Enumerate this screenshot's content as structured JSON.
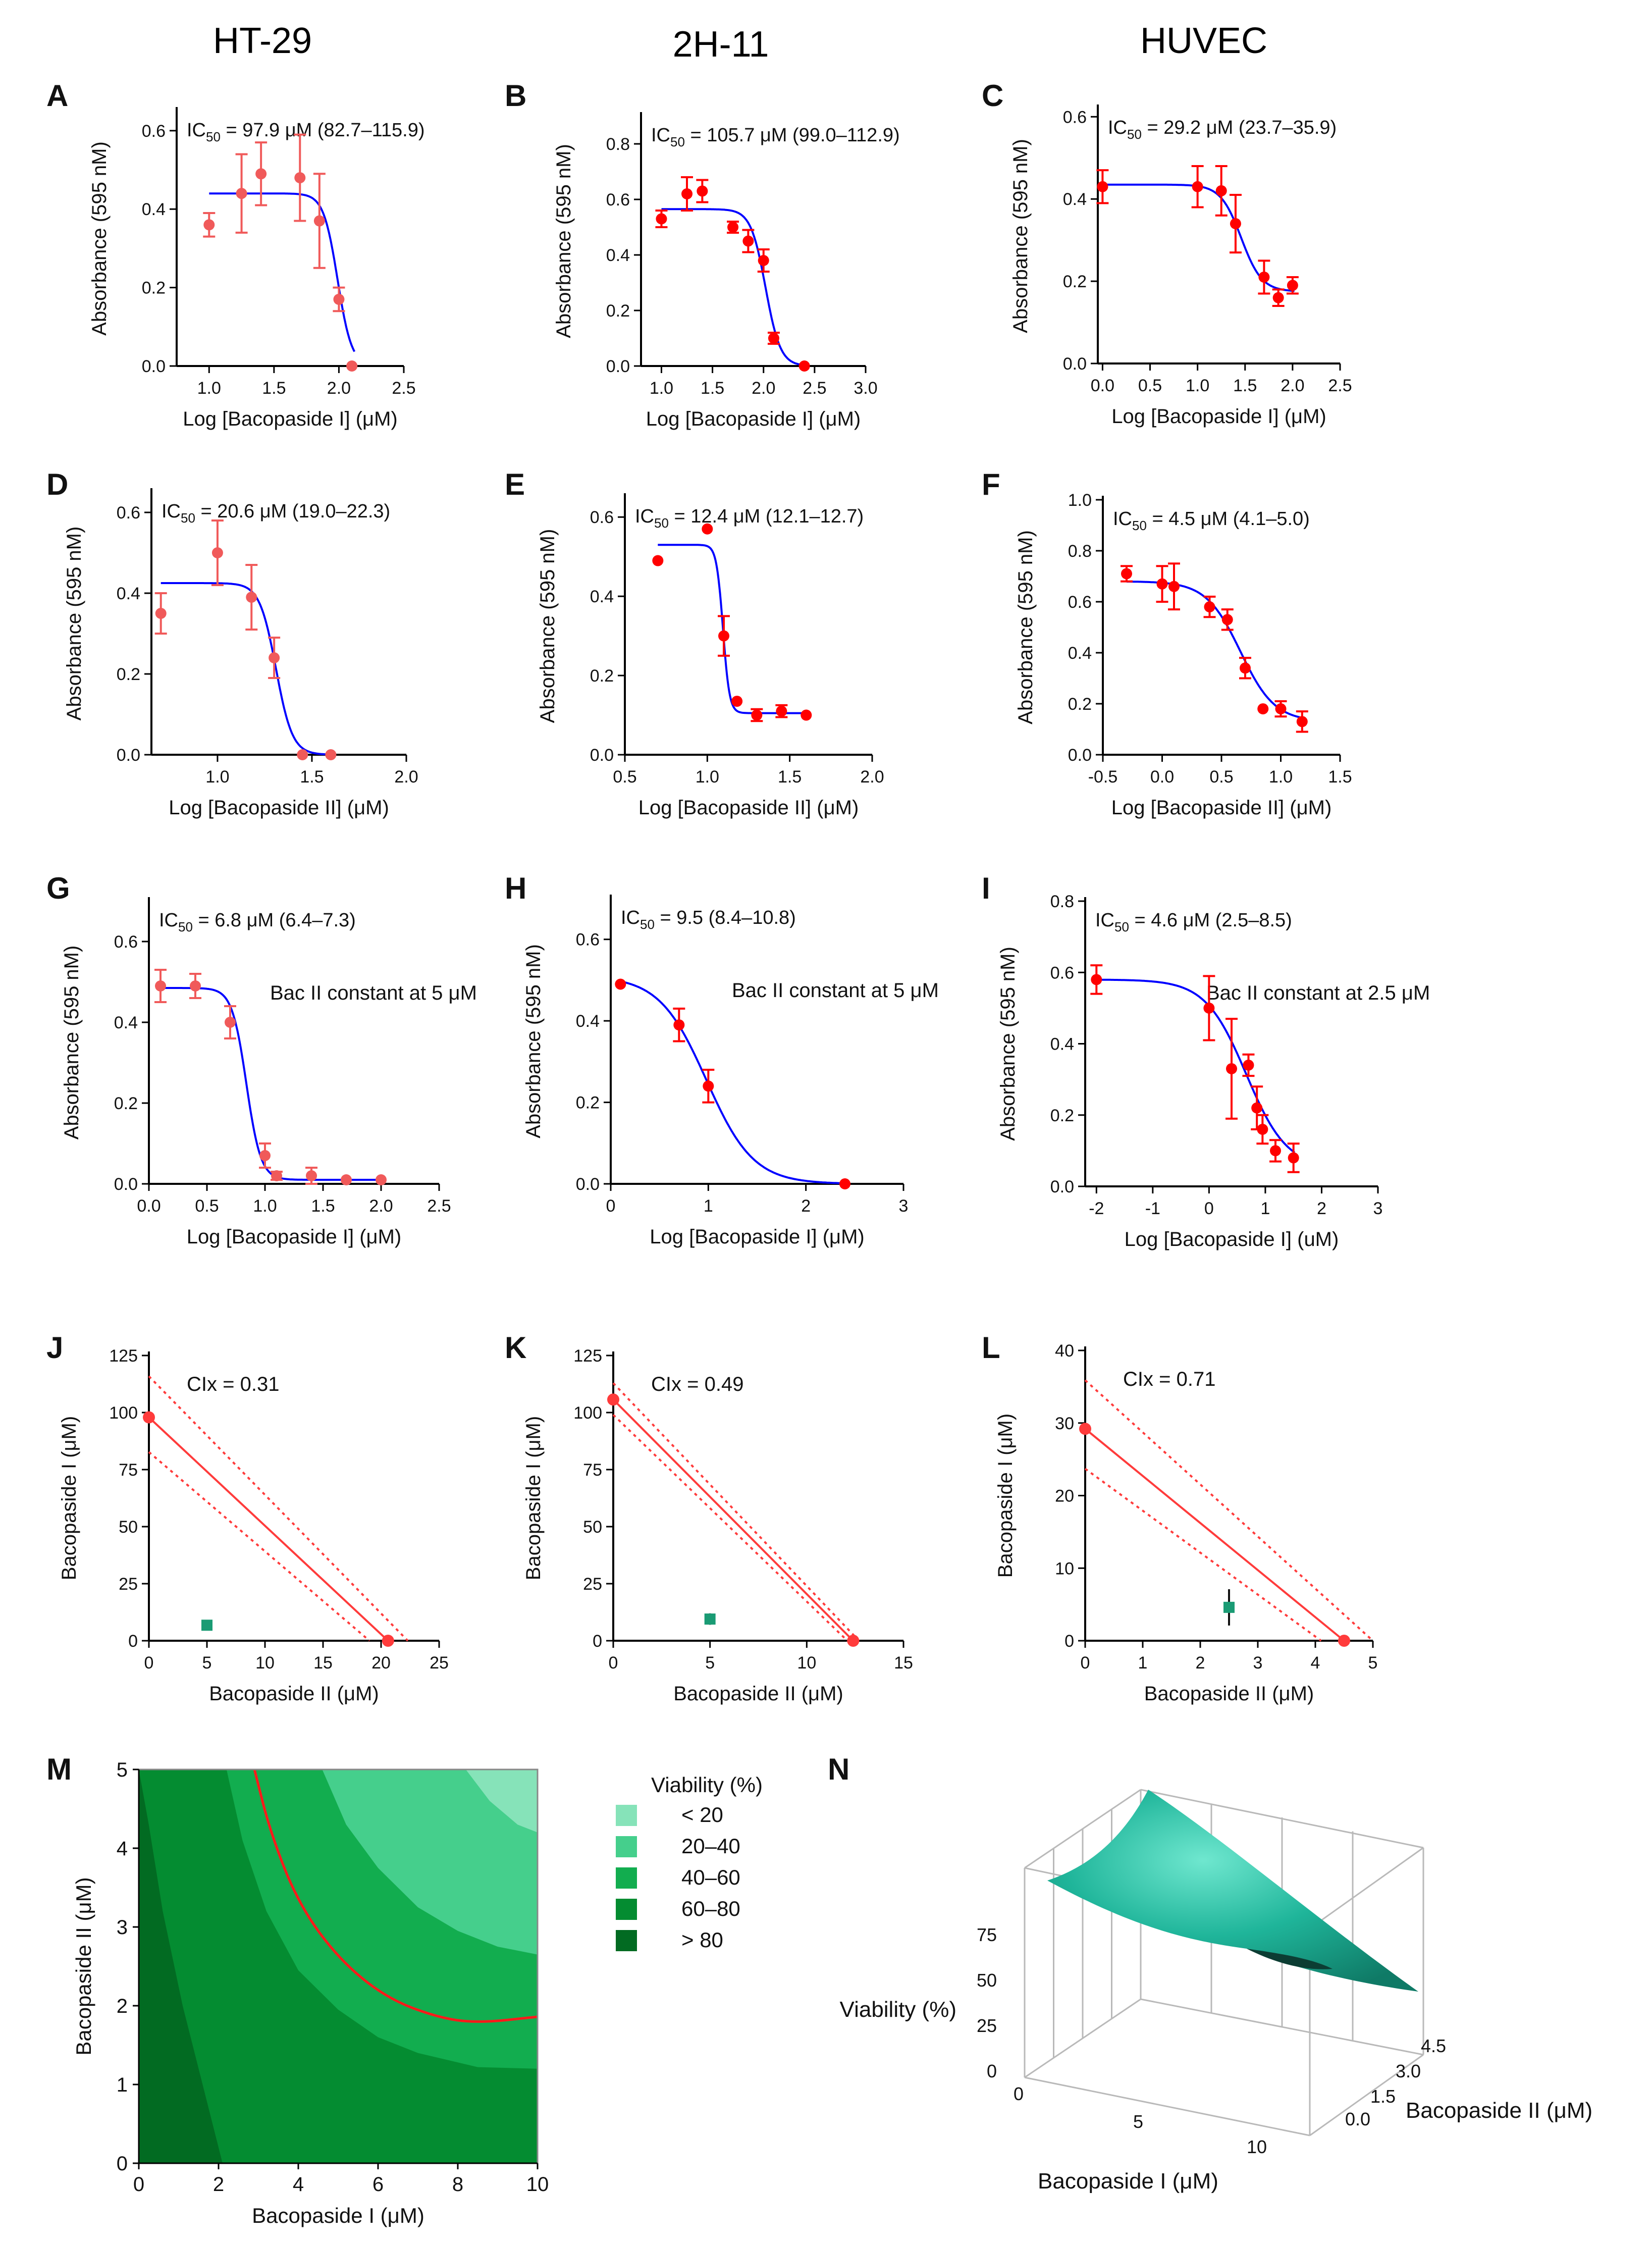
{
  "columns": [
    "HT-29",
    "2H-11",
    "HUVEC"
  ],
  "colors": {
    "points": "#ff0000",
    "points_light": "#f05a5a",
    "fit": "#0000ff",
    "iso": "#ff3b3b",
    "combo": "#1a9b74",
    "surface": "#1fb59a"
  },
  "chart_data": [
    {
      "panel": "A",
      "type": "scatter",
      "column": "HT-29",
      "ic50": "IC",
      "ic50_sub": "50",
      "ic50_rest": " = 97.9 μM (82.7–115.9)",
      "xlabel": "Log [Bacopaside I] (μM)",
      "ylabel": "Absorbance (595 nM)",
      "xlim": [
        0.75,
        2.5
      ],
      "ylim": [
        0,
        0.65
      ],
      "xticks": [
        1.0,
        1.5,
        2.0,
        2.5
      ],
      "xtick_labels": [
        "1.0",
        "1.5",
        "2.0",
        "2.5"
      ],
      "yticks": [
        0,
        0.2,
        0.4,
        0.6
      ],
      "ytick_labels": [
        "0.0",
        "0.2",
        "0.4",
        "0.6"
      ],
      "x": [
        1.0,
        1.25,
        1.4,
        1.7,
        1.85,
        2.0,
        2.1
      ],
      "y": [
        0.36,
        0.44,
        0.49,
        0.48,
        0.37,
        0.17,
        0.0
      ],
      "err": [
        0.03,
        0.1,
        0.08,
        0.11,
        0.12,
        0.03,
        0.0
      ],
      "fit": {
        "top": 0.44,
        "bottom": 0.0,
        "logic50": 1.99,
        "hill": 8
      }
    },
    {
      "panel": "B",
      "type": "scatter",
      "column": "2H-11",
      "ic50": "IC",
      "ic50_sub": "50",
      "ic50_rest": " = 105.7 μM (99.0–112.9)",
      "xlabel": "Log [Bacopaside I] (μM)",
      "ylabel": "Absorbance (595 nM)",
      "xlim": [
        0.8,
        3.0
      ],
      "ylim": [
        0,
        0.9
      ],
      "xticks": [
        1.0,
        1.5,
        2.0,
        2.5,
        3.0
      ],
      "xtick_labels": [
        "1.0",
        "1.5",
        "2.0",
        "2.5",
        "3.0"
      ],
      "yticks": [
        0,
        0.2,
        0.4,
        0.6,
        0.8
      ],
      "ytick_labels": [
        "0.0",
        "0.2",
        "0.4",
        "0.6",
        "0.8"
      ],
      "x": [
        1.0,
        1.25,
        1.4,
        1.7,
        1.85,
        2.0,
        2.1,
        2.4
      ],
      "y": [
        0.53,
        0.62,
        0.63,
        0.5,
        0.45,
        0.38,
        0.1,
        0.0
      ],
      "err": [
        0.03,
        0.06,
        0.04,
        0.02,
        0.04,
        0.04,
        0.02,
        0.0
      ],
      "fit": {
        "top": 0.565,
        "bottom": 0.0,
        "logic50": 2.02,
        "hill": 6
      }
    },
    {
      "panel": "C",
      "type": "scatter",
      "column": "HUVEC",
      "ic50": "IC",
      "ic50_sub": "50",
      "ic50_rest": " = 29.2 μM (23.7–35.9)",
      "xlabel": "Log [Bacopaside I] (μM)",
      "ylabel": "Absorbance (595 nM)",
      "xlim": [
        -0.05,
        2.5
      ],
      "ylim": [
        0,
        0.62
      ],
      "xticks": [
        0,
        0.5,
        1.0,
        1.5,
        2.0,
        2.5
      ],
      "xtick_labels": [
        "0.0",
        "0.5",
        "1.0",
        "1.5",
        "2.0",
        "2.5"
      ],
      "yticks": [
        0,
        0.2,
        0.4,
        0.6
      ],
      "ytick_labels": [
        "0.0",
        "0.2",
        "0.4",
        "0.6"
      ],
      "x": [
        0.0,
        1.0,
        1.25,
        1.4,
        1.7,
        1.85,
        2.0
      ],
      "y": [
        0.43,
        0.43,
        0.42,
        0.34,
        0.21,
        0.16,
        0.19
      ],
      "err": [
        0.04,
        0.05,
        0.06,
        0.07,
        0.04,
        0.02,
        0.02
      ],
      "fit": {
        "top": 0.435,
        "bottom": 0.175,
        "logic50": 1.46,
        "hill": 4
      }
    },
    {
      "panel": "D",
      "type": "scatter",
      "column": "HT-29",
      "ic50": "IC",
      "ic50_sub": "50",
      "ic50_rest": " = 20.6 μM (19.0–22.3)",
      "xlabel": "Log [Bacopaside II] (μM)",
      "ylabel": "Absorbance (595 nM)",
      "xlim": [
        0.65,
        2.0
      ],
      "ylim": [
        0,
        0.65
      ],
      "xticks": [
        1.0,
        1.5,
        2.0
      ],
      "xtick_labels": [
        "1.0",
        "1.5",
        "2.0"
      ],
      "yticks": [
        0,
        0.2,
        0.4,
        0.6
      ],
      "ytick_labels": [
        "0.0",
        "0.2",
        "0.4",
        "0.6"
      ],
      "x": [
        0.7,
        1.0,
        1.18,
        1.3,
        1.45,
        1.6
      ],
      "y": [
        0.35,
        0.5,
        0.39,
        0.24,
        0.0,
        0.0
      ],
      "err": [
        0.05,
        0.08,
        0.08,
        0.05,
        0.0,
        0.0
      ],
      "fit": {
        "top": 0.425,
        "bottom": 0.0,
        "logic50": 1.31,
        "hill": 10
      }
    },
    {
      "panel": "E",
      "type": "scatter",
      "column": "2H-11",
      "ic50": "IC",
      "ic50_sub": "50",
      "ic50_rest": " = 12.4 μM (12.1–12.7)",
      "xlabel": "Log [Bacopaside II] (μM)",
      "ylabel": "Absorbance (595 nM)",
      "xlim": [
        0.5,
        2.0
      ],
      "ylim": [
        0,
        0.65
      ],
      "xticks": [
        0.5,
        1.0,
        1.5,
        2.0
      ],
      "xtick_labels": [
        "0.5",
        "1.0",
        "1.5",
        "2.0"
      ],
      "yticks": [
        0,
        0.2,
        0.4,
        0.6
      ],
      "ytick_labels": [
        "0.0",
        "0.2",
        "0.4",
        "0.6"
      ],
      "x": [
        0.7,
        1.0,
        1.1,
        1.18,
        1.3,
        1.45,
        1.6
      ],
      "y": [
        0.49,
        0.57,
        0.3,
        0.135,
        0.1,
        0.11,
        0.1
      ],
      "err": [
        0.0,
        0.0,
        0.05,
        0.0,
        0.015,
        0.015,
        0.0
      ],
      "fit": {
        "top": 0.53,
        "bottom": 0.105,
        "logic50": 1.095,
        "hill": 22
      }
    },
    {
      "panel": "F",
      "type": "scatter",
      "column": "HUVEC",
      "ic50": "IC",
      "ic50_sub": "50",
      "ic50_rest": " = 4.5 μM (4.1–5.0)",
      "xlabel": "Log [Bacopaside II] (μM)",
      "ylabel": "Absorbance (595 nM)",
      "xlim": [
        -0.5,
        1.5
      ],
      "ylim": [
        0,
        1.0
      ],
      "xticks": [
        -0.5,
        0,
        0.5,
        1.0,
        1.5
      ],
      "xtick_labels": [
        "-0.5",
        "0.0",
        "0.5",
        "1.0",
        "1.5"
      ],
      "yticks": [
        0,
        0.2,
        0.4,
        0.6,
        0.8,
        1.0
      ],
      "ytick_labels": [
        "0.0",
        "0.2",
        "0.4",
        "0.6",
        "0.8",
        "1.0"
      ],
      "x": [
        -0.3,
        0.0,
        0.1,
        0.4,
        0.55,
        0.7,
        0.85,
        1.0,
        1.18
      ],
      "y": [
        0.71,
        0.67,
        0.66,
        0.58,
        0.53,
        0.34,
        0.18,
        0.18,
        0.13
      ],
      "err": [
        0.03,
        0.07,
        0.09,
        0.04,
        0.04,
        0.04,
        0.0,
        0.03,
        0.04
      ],
      "fit": {
        "top": 0.68,
        "bottom": 0.13,
        "logic50": 0.66,
        "hill": 3
      }
    },
    {
      "panel": "G",
      "type": "scatter",
      "column": "HT-29",
      "ic50": "IC",
      "ic50_sub": "50",
      "ic50_rest": " = 6.8 μM (6.4–7.3)",
      "note": "Bac II constant at 5 μM",
      "xlabel": "Log [Bacopaside I] (μM)",
      "ylabel": "Absorbance (595 nM)",
      "xlim": [
        0,
        2.5
      ],
      "ylim": [
        0,
        0.7
      ],
      "xticks": [
        0,
        0.5,
        1.0,
        1.5,
        2.0,
        2.5
      ],
      "xtick_labels": [
        "0.0",
        "0.5",
        "1.0",
        "1.5",
        "2.0",
        "2.5"
      ],
      "yticks": [
        0,
        0.2,
        0.4,
        0.6
      ],
      "ytick_labels": [
        "0.0",
        "0.2",
        "0.4",
        "0.6"
      ],
      "x": [
        0.1,
        0.4,
        0.7,
        1.0,
        1.1,
        1.4,
        1.7,
        2.0
      ],
      "y": [
        0.49,
        0.49,
        0.4,
        0.07,
        0.02,
        0.02,
        0.01,
        0.01
      ],
      "err": [
        0.04,
        0.03,
        0.04,
        0.03,
        0.01,
        0.02,
        0.0,
        0.0
      ],
      "fit": {
        "top": 0.485,
        "bottom": 0.01,
        "logic50": 0.84,
        "hill": 7
      }
    },
    {
      "panel": "H",
      "type": "scatter",
      "column": "2H-11",
      "ic50": "IC",
      "ic50_sub": "50",
      "ic50_rest": " = 9.5 (8.4–10.8)",
      "note": "Bac II constant at 5 μM",
      "xlabel": "Log [Bacopaside I] (μM)",
      "ylabel": "Absorbance (595 nM)",
      "xlim": [
        0,
        3.0
      ],
      "ylim": [
        0,
        0.7
      ],
      "xticks": [
        0,
        1,
        2,
        3
      ],
      "xtick_labels": [
        "0",
        "1",
        "2",
        "3"
      ],
      "yticks": [
        0,
        0.2,
        0.4,
        0.6
      ],
      "ytick_labels": [
        "0.0",
        "0.2",
        "0.4",
        "0.6"
      ],
      "x": [
        0.1,
        0.7,
        1.0,
        2.4
      ],
      "y": [
        0.49,
        0.39,
        0.24,
        0.0
      ],
      "err": [
        0.0,
        0.04,
        0.04,
        0.0
      ],
      "fit": {
        "top": 0.51,
        "bottom": 0.0,
        "logic50": 0.98,
        "hill": 1.8
      }
    },
    {
      "panel": "I",
      "type": "scatter",
      "column": "HUVEC",
      "ic50": "IC",
      "ic50_sub": "50",
      "ic50_rest": " = 4.6 μM (2.5–8.5)",
      "note": "Bac II constant at 2.5 μM",
      "xlabel": "Log [Bacopaside I] (uM)",
      "ylabel": "Absorbance (595 nM)",
      "xlim": [
        -2.2,
        3.0
      ],
      "ylim": [
        0,
        0.8
      ],
      "xticks": [
        -2,
        -1,
        0,
        1,
        2,
        3
      ],
      "xtick_labels": [
        "-2",
        "-1",
        "0",
        "1",
        "2",
        "3"
      ],
      "yticks": [
        0,
        0.2,
        0.4,
        0.6,
        0.8
      ],
      "ytick_labels": [
        "0.0",
        "0.2",
        "0.4",
        "0.6",
        "0.8"
      ],
      "x": [
        -2.0,
        0.0,
        0.4,
        0.7,
        0.85,
        0.95,
        1.18,
        1.5
      ],
      "y": [
        0.58,
        0.5,
        0.33,
        0.34,
        0.22,
        0.16,
        0.1,
        0.08
      ],
      "err": [
        0.04,
        0.09,
        0.14,
        0.03,
        0.06,
        0.04,
        0.03,
        0.04
      ],
      "fit": {
        "top": 0.58,
        "bottom": 0.05,
        "logic50": 0.66,
        "hill": 1.2
      }
    },
    {
      "panel": "J",
      "type": "isobologram",
      "column": "HT-29",
      "cix": "CIx = 0.31",
      "xlabel": "Bacopaside II (μM)",
      "ylabel": "Bacopaside I (μM)",
      "xlim": [
        0,
        25
      ],
      "ylim": [
        0,
        125
      ],
      "xticks": [
        0,
        5,
        10,
        15,
        20,
        25
      ],
      "xtick_labels": [
        "0",
        "5",
        "10",
        "15",
        "20",
        "25"
      ],
      "yticks": [
        0,
        25,
        50,
        75,
        100,
        125
      ],
      "ytick_labels": [
        "0",
        "25",
        "50",
        "75",
        "100",
        "125"
      ],
      "line": [
        [
          0,
          97.9
        ],
        [
          20.6,
          0
        ]
      ],
      "ci_upper": [
        [
          0,
          115.9
        ],
        [
          22.3,
          0
        ]
      ],
      "ci_lower": [
        [
          0,
          82.7
        ],
        [
          19.0,
          0
        ]
      ],
      "combo": {
        "x": 5,
        "y": 6.8,
        "err": 2.0
      }
    },
    {
      "panel": "K",
      "type": "isobologram",
      "column": "2H-11",
      "cix": "CIx = 0.49",
      "xlabel": "Bacopaside II (μM)",
      "ylabel": "Bacopaside I (μM)",
      "xlim": [
        0,
        15
      ],
      "ylim": [
        0,
        125
      ],
      "xticks": [
        0,
        5,
        10,
        15
      ],
      "xtick_labels": [
        "0",
        "5",
        "10",
        "15"
      ],
      "yticks": [
        0,
        25,
        50,
        75,
        100,
        125
      ],
      "ytick_labels": [
        "0",
        "25",
        "50",
        "75",
        "100",
        "125"
      ],
      "line": [
        [
          0,
          105.7
        ],
        [
          12.4,
          0
        ]
      ],
      "ci_upper": [
        [
          0,
          112.9
        ],
        [
          12.7,
          0
        ]
      ],
      "ci_lower": [
        [
          0,
          99.0
        ],
        [
          12.1,
          0
        ]
      ],
      "combo": {
        "x": 5,
        "y": 9.5,
        "err": 2.5
      }
    },
    {
      "panel": "L",
      "type": "isobologram",
      "column": "HUVEC",
      "cix": "CIx = 0.71",
      "xlabel": "Bacopaside II (μM)",
      "ylabel": "Bacopaside I (μM)",
      "xlim": [
        0,
        5
      ],
      "ylim": [
        0,
        40
      ],
      "xticks": [
        0,
        1,
        2,
        3,
        4,
        5
      ],
      "xtick_labels": [
        "0",
        "1",
        "2",
        "3",
        "4",
        "5"
      ],
      "yticks": [
        0,
        10,
        20,
        30,
        40
      ],
      "ytick_labels": [
        "0",
        "10",
        "20",
        "30",
        "40"
      ],
      "line": [
        [
          0,
          29.2
        ],
        [
          4.5,
          0
        ]
      ],
      "ci_upper": [
        [
          0,
          35.9
        ],
        [
          5.0,
          0
        ]
      ],
      "ci_lower": [
        [
          0,
          23.7
        ],
        [
          4.1,
          0
        ]
      ],
      "combo": {
        "x": 2.5,
        "y": 4.6,
        "err": 2.5
      }
    },
    {
      "panel": "M",
      "type": "heatmap",
      "column": "HT-29",
      "xlabel": "Bacopaside I (μM)",
      "ylabel": "Bacopaside II (μM)",
      "xlim": [
        0,
        10
      ],
      "ylim": [
        0,
        5
      ],
      "xticks": [
        0,
        2,
        4,
        6,
        8,
        10
      ],
      "xtick_labels": [
        "0",
        "2",
        "4",
        "6",
        "8",
        "10"
      ],
      "yticks": [
        0,
        1,
        2,
        3,
        4,
        5
      ],
      "ytick_labels": [
        "0",
        "1",
        "2",
        "3",
        "4",
        "5"
      ],
      "legend_title": "Viability (%)",
      "legend": [
        {
          "label": "< 20",
          "color": "#86e3b9"
        },
        {
          "label": "20–40",
          "color": "#45cf8c"
        },
        {
          "label": "40–60",
          "color": "#12ad4f"
        },
        {
          "label": "60–80",
          "color": "#048c31"
        },
        {
          "label": "> 80",
          "color": "#026b22"
        }
      ],
      "contour_50": [
        [
          2.9,
          5.0
        ],
        [
          3.3,
          4.2
        ],
        [
          4.0,
          3.3
        ],
        [
          5.0,
          2.6
        ],
        [
          6.2,
          2.1
        ],
        [
          7.5,
          1.85
        ],
        [
          8.5,
          1.78
        ],
        [
          10.0,
          1.86
        ]
      ]
    },
    {
      "panel": "N",
      "type": "surface",
      "column": "2H-11",
      "zlabel": "Viability (%)",
      "xlabel": "Bacopaside I (μM)",
      "ylabel": "Bacopaside II (μM)",
      "xticks": [
        0,
        5,
        10
      ],
      "xtick_labels": [
        "0",
        "5",
        "10"
      ],
      "yticks": [
        0,
        1.5,
        3.0,
        4.5
      ],
      "ytick_labels": [
        "0.0",
        "1.5",
        "3.0",
        "4.5"
      ],
      "zticks": [
        0,
        25,
        50,
        75
      ],
      "ztick_labels": [
        "0",
        "25",
        "50",
        "75"
      ]
    }
  ]
}
